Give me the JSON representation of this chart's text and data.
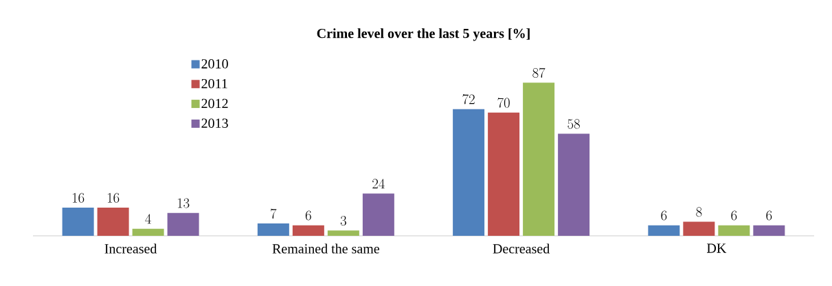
{
  "chart_data": {
    "type": "bar",
    "title": "Crime level over the last 5 years [%]",
    "categories": [
      "Increased",
      "Remained the same",
      "Decreased",
      "DK"
    ],
    "series": [
      {
        "name": "2010",
        "color": "#4f81bd",
        "values": [
          16,
          7,
          72,
          6
        ]
      },
      {
        "name": "2011",
        "color": "#c0504d",
        "values": [
          16,
          6,
          70,
          8
        ]
      },
      {
        "name": "2012",
        "color": "#9bbb59",
        "values": [
          4,
          3,
          87,
          6
        ]
      },
      {
        "name": "2013",
        "color": "#8064a2",
        "values": [
          13,
          24,
          58,
          6
        ]
      }
    ],
    "relative": false,
    "data_labels": true,
    "legend": "top left"
  }
}
